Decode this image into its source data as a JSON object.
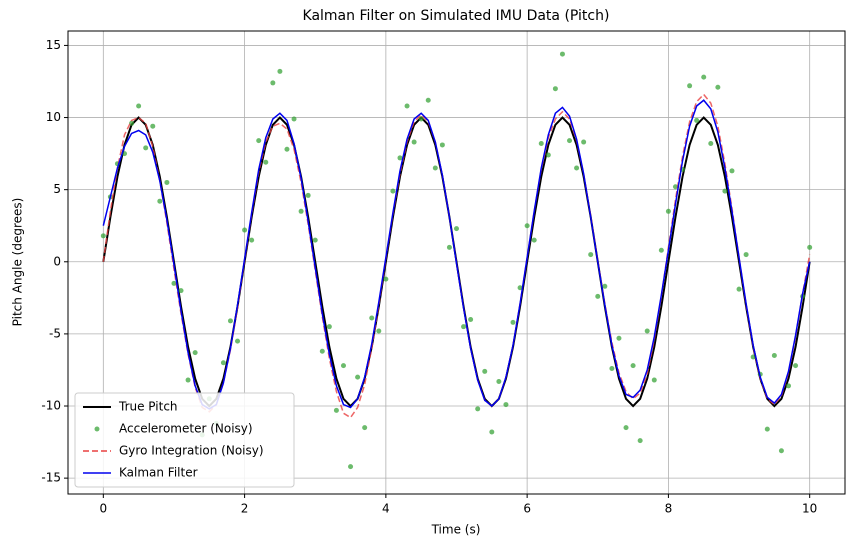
{
  "chart_data": {
    "type": "line",
    "title": "Kalman Filter on Simulated IMU Data (Pitch)",
    "x_label": "Time (s)",
    "y_label": "Pitch Angle (degrees)",
    "x": [
      0,
      0.1,
      0.2,
      0.3,
      0.4,
      0.5,
      0.6,
      0.7,
      0.8,
      0.9,
      1,
      1.1,
      1.2,
      1.3,
      1.4,
      1.5,
      1.6,
      1.7,
      1.8,
      1.9,
      2,
      2.1,
      2.2,
      2.3,
      2.4,
      2.5,
      2.6,
      2.7,
      2.8,
      2.9,
      3,
      3.1,
      3.2,
      3.3,
      3.4,
      3.5,
      3.6,
      3.7,
      3.8,
      3.9,
      4,
      4.1,
      4.2,
      4.3,
      4.4,
      4.5,
      4.6,
      4.7,
      4.8,
      4.9,
      5,
      5.1,
      5.2,
      5.3,
      5.4,
      5.5,
      5.6,
      5.7,
      5.8,
      5.9,
      6,
      6.1,
      6.2,
      6.3,
      6.4,
      6.5,
      6.6,
      6.7,
      6.8,
      6.9,
      7,
      7.1,
      7.2,
      7.3,
      7.4,
      7.5,
      7.6,
      7.7,
      7.8,
      7.9,
      8,
      8.1,
      8.2,
      8.3,
      8.4,
      8.5,
      8.6,
      8.7,
      8.8,
      8.9,
      9,
      9.1,
      9.2,
      9.3,
      9.4,
      9.5,
      9.6,
      9.7,
      9.8,
      9.9,
      10
    ],
    "series": [
      {
        "name": "True Pitch",
        "color": "#000000",
        "line_style": "solid",
        "marker": false,
        "values": [
          0,
          3.1,
          5.9,
          8.1,
          9.5,
          10,
          9.5,
          8.1,
          5.9,
          3.1,
          0,
          -3.1,
          -5.9,
          -8.1,
          -9.5,
          -10,
          -9.5,
          -8.1,
          -5.9,
          -3.1,
          0,
          3.1,
          5.9,
          8.1,
          9.5,
          10,
          9.5,
          8.1,
          5.9,
          3.1,
          0,
          -3.1,
          -5.9,
          -8.1,
          -9.5,
          -10,
          -9.5,
          -8.1,
          -5.9,
          -3.1,
          0,
          3.1,
          5.9,
          8.1,
          9.5,
          10,
          9.5,
          8.1,
          5.9,
          3.1,
          0,
          -3.1,
          -5.9,
          -8.1,
          -9.5,
          -10,
          -9.5,
          -8.1,
          -5.9,
          -3.1,
          0,
          3.1,
          5.9,
          8.1,
          9.5,
          10,
          9.5,
          8.1,
          5.9,
          3.1,
          0,
          -3.1,
          -5.9,
          -8.1,
          -9.5,
          -10,
          -9.5,
          -8.1,
          -5.9,
          -3.1,
          0,
          3.1,
          5.9,
          8.1,
          9.5,
          10,
          9.5,
          8.1,
          5.9,
          3.1,
          0,
          -3.1,
          -5.9,
          -8.1,
          -9.5,
          -10,
          -9.5,
          -8.1,
          -5.9,
          -3.1,
          0
        ]
      },
      {
        "name": "Accelerometer (Noisy)",
        "color": "#2e9e2e",
        "line_style": "none",
        "marker": true,
        "values": [
          1.8,
          4.5,
          6.8,
          7.5,
          9.6,
          10.8,
          7.9,
          9.4,
          4.2,
          5.5,
          -1.5,
          -2.0,
          -8.2,
          -6.3,
          -12.0,
          -9.5,
          -11.2,
          -7.0,
          -4.1,
          -5.5,
          2.2,
          1.5,
          8.4,
          6.9,
          12.4,
          13.2,
          7.8,
          9.9,
          3.5,
          4.6,
          1.5,
          -6.2,
          -4.5,
          -10.3,
          -7.2,
          -14.2,
          -8.0,
          -11.5,
          -3.9,
          -4.8,
          -1.2,
          4.9,
          7.2,
          10.8,
          8.3,
          9.9,
          11.2,
          6.5,
          8.1,
          1.0,
          2.3,
          -4.5,
          -4.0,
          -10.2,
          -7.6,
          -11.8,
          -8.3,
          -9.9,
          -4.2,
          -1.8,
          2.5,
          1.5,
          8.2,
          7.4,
          12.0,
          14.4,
          8.4,
          6.5,
          8.3,
          0.5,
          -2.4,
          -1.7,
          -7.4,
          -5.3,
          -11.5,
          -7.2,
          -12.4,
          -4.8,
          -8.2,
          0.8,
          3.5,
          5.2,
          6.4,
          12.2,
          9.8,
          12.8,
          8.2,
          12.1,
          4.9,
          6.3,
          -1.9,
          0.5,
          -6.6,
          -7.8,
          -11.6,
          -6.5,
          -13.1,
          -8.6,
          -7.2,
          -2.4,
          1.0
        ]
      },
      {
        "name": "Gyro Integration (Noisy)",
        "color": "#e84040",
        "line_style": "dashed",
        "marker": false,
        "values": [
          0,
          3.5,
          6.5,
          8.8,
          9.8,
          10,
          9.6,
          8.0,
          5.6,
          2.7,
          -0.5,
          -3.6,
          -6.4,
          -8.7,
          -10.1,
          -10.4,
          -9.9,
          -8.4,
          -6.1,
          -3.2,
          0.1,
          3.3,
          6.2,
          8.3,
          9.4,
          9.6,
          9.2,
          7.8,
          5.5,
          2.6,
          -0.6,
          -3.8,
          -6.7,
          -9.0,
          -10.5,
          -10.8,
          -10.1,
          -8.5,
          -6.0,
          -3.0,
          0.2,
          3.3,
          6.1,
          8.3,
          9.7,
          10.2,
          9.7,
          8.3,
          6.0,
          3.1,
          -0.1,
          -3.2,
          -6.0,
          -8.2,
          -9.6,
          -10.0,
          -9.5,
          -8.0,
          -5.8,
          -2.9,
          0.3,
          3.5,
          6.4,
          8.6,
          9.9,
          10.4,
          9.9,
          8.4,
          6.1,
          3.2,
          0.1,
          -2.9,
          -5.6,
          -7.7,
          -9.0,
          -9.5,
          -9.1,
          -7.8,
          -5.4,
          -2.4,
          1.0,
          4.3,
          7.3,
          9.7,
          11.1,
          11.6,
          11.0,
          9.4,
          6.8,
          3.7,
          0.3,
          -3.0,
          -5.9,
          -8.1,
          -9.5,
          -9.9,
          -9.3,
          -7.7,
          -5.2,
          -2.2,
          0.5
        ]
      },
      {
        "name": "Kalman Filter",
        "color": "#0000ee",
        "line_style": "solid",
        "marker": false,
        "values": [
          2.5,
          4.5,
          6.5,
          8.0,
          8.9,
          9.1,
          8.8,
          7.6,
          5.6,
          2.9,
          -0.2,
          -3.4,
          -6.3,
          -8.6,
          -9.9,
          -10.2,
          -9.9,
          -8.4,
          -6.0,
          -3.0,
          0.2,
          3.4,
          6.4,
          8.6,
          9.9,
          10.3,
          9.8,
          8.2,
          5.8,
          2.8,
          -0.4,
          -3.6,
          -6.4,
          -8.6,
          -9.9,
          -10.1,
          -9.5,
          -8.0,
          -5.7,
          -2.8,
          0.3,
          3.4,
          6.3,
          8.5,
          9.9,
          10.3,
          9.8,
          8.3,
          6.0,
          3.1,
          -0.1,
          -3.2,
          -6.0,
          -8.2,
          -9.6,
          -10.0,
          -9.5,
          -8.0,
          -5.8,
          -2.9,
          0.3,
          3.5,
          6.5,
          8.8,
          10.3,
          10.7,
          10.1,
          8.5,
          6.1,
          3.1,
          0,
          -3.0,
          -5.8,
          -7.9,
          -9.2,
          -9.4,
          -8.9,
          -7.5,
          -5.2,
          -2.3,
          0.8,
          4.0,
          7.0,
          9.4,
          10.8,
          11.2,
          10.6,
          9.0,
          6.5,
          3.5,
          0.3,
          -2.9,
          -5.8,
          -8.0,
          -9.4,
          -9.8,
          -9.2,
          -7.6,
          -5.1,
          -2.2,
          0
        ]
      }
    ],
    "xlim": [
      -0.5,
      10.5
    ],
    "ylim": [
      -16.1,
      16.0
    ],
    "xticks": [
      0,
      2,
      4,
      6,
      8,
      10
    ],
    "yticks": [
      -15,
      -10,
      -5,
      0,
      5,
      10,
      15
    ],
    "grid": true,
    "legend": "lower left"
  }
}
